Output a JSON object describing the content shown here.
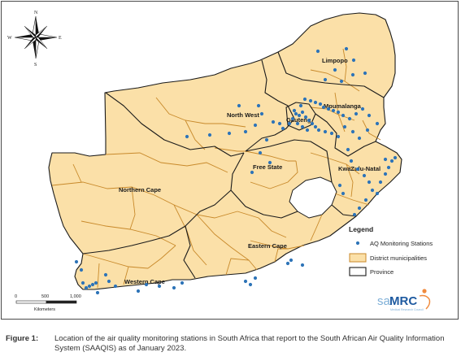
{
  "map": {
    "provinces": [
      "Limpopo",
      "Mpumalanga",
      "North West",
      "Gauteng",
      "Free State",
      "KwaZulu-Natal",
      "Northern Cape",
      "Eastern Cape",
      "Western Cape"
    ],
    "compass": {
      "n": "N",
      "s": "S",
      "e": "E",
      "w": "W"
    },
    "legend": {
      "title": "Legend",
      "items": [
        "AQ Monitoring Stations",
        "District municipalities",
        "Province"
      ]
    },
    "scale": {
      "ticks": [
        "0",
        "500",
        "1,000"
      ],
      "unit": "Kilometers"
    },
    "logo": {
      "prefix": "sa",
      "main": "MRC",
      "tagline": "Medical Research Council"
    },
    "colors": {
      "land": "#fbe0a8",
      "district_border": "#c8892a",
      "province_border": "#1a1a1a",
      "station": "#2e74b8"
    }
  },
  "caption": {
    "label": "Figure 1:",
    "text": "Location of the air quality monitoring stations in South Africa that report to the South African Air Quality Information System (SAAQIS) as of January 2023."
  }
}
